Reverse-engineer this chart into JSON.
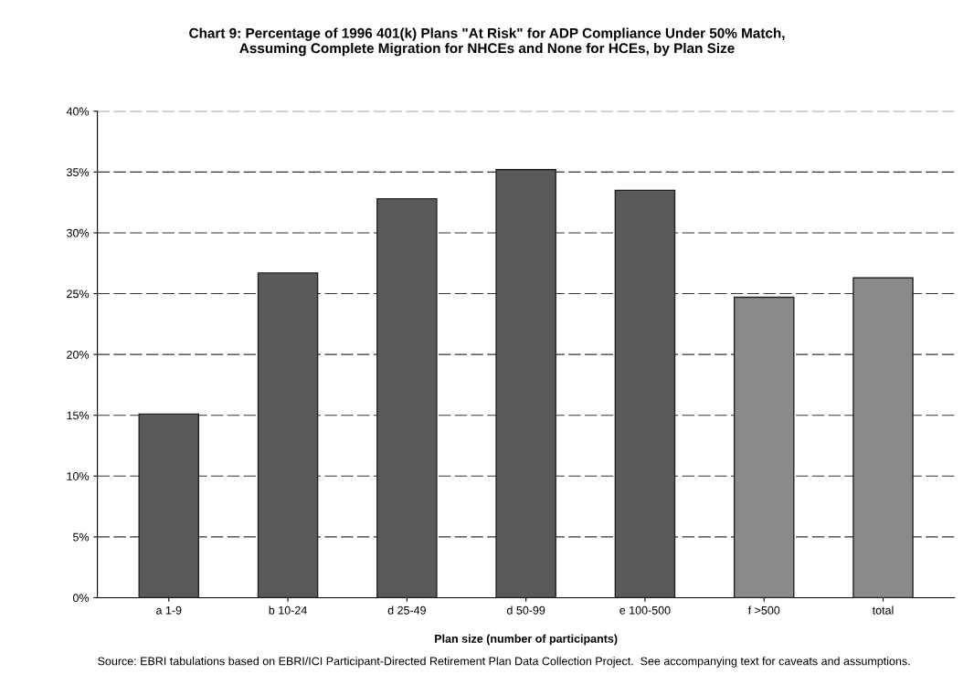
{
  "chart_data": {
    "type": "bar",
    "title": "Chart 9: Percentage of 1996 401(k) Plans \"At Risk\" for ADP Compliance Under 50% Match,\nAssuming Complete Migration for NHCEs and None for HCEs, by Plan Size",
    "xlabel": "Plan size (number of participants)",
    "categories": [
      "a 1-9",
      "b 10-24",
      "d 25-49",
      "d 50-99",
      "e 100-500",
      "f >500",
      "total"
    ],
    "values": [
      15.1,
      26.7,
      32.8,
      35.2,
      33.5,
      24.7,
      26.3
    ],
    "colors": [
      "#5a5a5a",
      "#5a5a5a",
      "#5a5a5a",
      "#5a5a5a",
      "#5a5a5a",
      "#8a8a8a",
      "#8a8a8a"
    ],
    "ylim": [
      0,
      40
    ],
    "yticks": [
      {
        "value": 0,
        "label": "0%"
      },
      {
        "value": 5,
        "label": "5%"
      },
      {
        "value": 10,
        "label": "10%"
      },
      {
        "value": 15,
        "label": "15%"
      },
      {
        "value": 20,
        "label": "20%"
      },
      {
        "value": 25,
        "label": "25%"
      },
      {
        "value": 30,
        "label": "30%"
      },
      {
        "value": 35,
        "label": "35%"
      },
      {
        "value": 40,
        "label": "40%"
      }
    ],
    "grid": "y",
    "annotations": [
      "Source: EBRI tabulations based on EBRI/ICI Participant-Directed Retirement Plan Data Collection Project.  See accompanying text for caveats and assumptions."
    ]
  }
}
